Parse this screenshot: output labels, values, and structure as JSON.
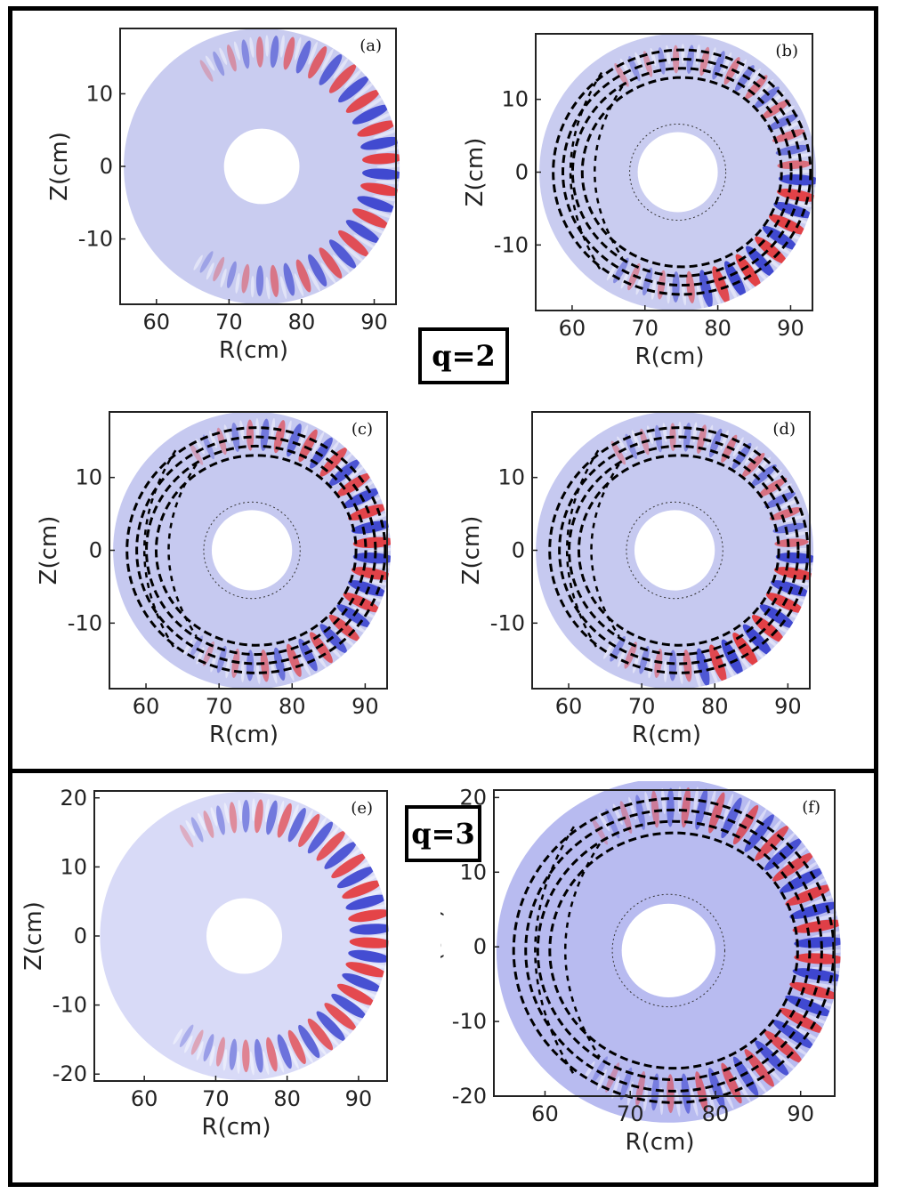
{
  "groups": [
    {
      "label": "q=2"
    },
    {
      "label": "q=3"
    }
  ],
  "chart_data": [
    {
      "type": "heatmap",
      "panel_label": "(a)",
      "q": 2,
      "xlabel": "R(cm)",
      "ylabel": "Z(cm)",
      "xlim": [
        55,
        93
      ],
      "ylim": [
        -19,
        19
      ],
      "xticks": [
        60,
        70,
        80,
        90
      ],
      "yticks": [
        -10,
        0,
        10
      ],
      "annulus": {
        "center_R": 74.5,
        "center_Z": 0,
        "inner_radius": 5.2,
        "outer_radius": 19
      },
      "field_lobe": "outboard",
      "orbits": false,
      "n_wave_bands": 34
    },
    {
      "type": "heatmap",
      "panel_label": "(b)",
      "q": 2,
      "xlabel": "R(cm)",
      "ylabel": "Z(cm)",
      "xlim": [
        55,
        93
      ],
      "ylim": [
        -19,
        19
      ],
      "xticks": [
        60,
        70,
        80,
        90
      ],
      "yticks": [
        -10,
        0,
        10
      ],
      "annulus": {
        "center_R": 74.5,
        "center_Z": 0,
        "inner_radius": 5.5,
        "outer_radius": 19
      },
      "field_lobe": "outboard-lower",
      "orbits": true,
      "n_wave_bands": 34
    },
    {
      "type": "heatmap",
      "panel_label": "(c)",
      "q": 2,
      "xlabel": "R(cm)",
      "ylabel": "Z(cm)",
      "xlim": [
        55,
        93
      ],
      "ylim": [
        -19,
        19
      ],
      "xticks": [
        60,
        70,
        80,
        90
      ],
      "yticks": [
        -10,
        0,
        10
      ],
      "annulus": {
        "center_R": 74.5,
        "center_Z": 0,
        "inner_radius": 5.5,
        "outer_radius": 19
      },
      "field_lobe": "outboard",
      "orbits": true,
      "n_wave_bands": 34
    },
    {
      "type": "heatmap",
      "panel_label": "(d)",
      "q": 2,
      "xlabel": "R(cm)",
      "ylabel": "Z(cm)",
      "xlim": [
        55,
        93
      ],
      "ylim": [
        -19,
        19
      ],
      "xticks": [
        60,
        70,
        80,
        90
      ],
      "yticks": [
        -10,
        0,
        10
      ],
      "annulus": {
        "center_R": 74.5,
        "center_Z": 0,
        "inner_radius": 5.5,
        "outer_radius": 19
      },
      "field_lobe": "outboard-lower",
      "orbits": true,
      "n_wave_bands": 34
    },
    {
      "type": "heatmap",
      "panel_label": "(e)",
      "q": 3,
      "xlabel": "R(cm)",
      "ylabel": "Z(cm)",
      "xlim": [
        53,
        94
      ],
      "ylim": [
        -21,
        21
      ],
      "xticks": [
        60,
        70,
        80,
        90
      ],
      "yticks": [
        -20,
        -10,
        0,
        10,
        20
      ],
      "annulus": {
        "center_R": 74,
        "center_Z": 0,
        "inner_radius": 5.3,
        "outer_radius": 20.2
      },
      "field_lobe": "outboard",
      "orbits": false,
      "n_wave_bands": 40
    },
    {
      "type": "heatmap",
      "panel_label": "(f)",
      "q": 3,
      "xlabel": "R(cm)",
      "ylabel": "Z(cm)",
      "xlim": [
        54,
        94
      ],
      "ylim": [
        -20,
        21
      ],
      "xticks": [
        60,
        70,
        80,
        90
      ],
      "yticks": [
        -20,
        -10,
        0,
        10,
        20
      ],
      "annulus": {
        "center_R": 74.5,
        "center_Z": -0.5,
        "inner_radius": 5.5,
        "outer_radius": 20.2
      },
      "field_lobe": "outboard",
      "orbits": true,
      "n_wave_bands": 40
    }
  ]
}
